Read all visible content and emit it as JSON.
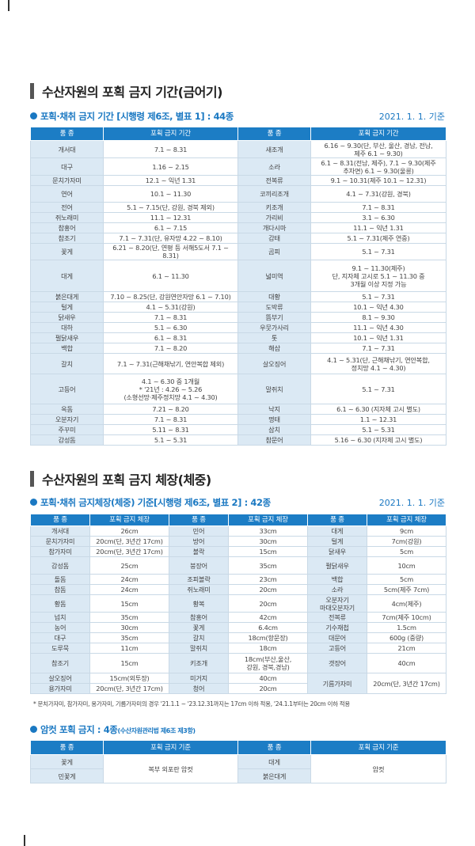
{
  "section1": {
    "title": "수산자원의 포획 금지 기간(금어기)",
    "subtitle": "포획·채취 금지 기간 [시행령 제6조, 별표 1] : 44종",
    "date": "2021. 1. 1. 기준",
    "headers": [
      "품 종",
      "포획 금지 기간",
      "품 종",
      "포획 금지 기간"
    ],
    "rows": [
      [
        "개서대",
        "7.1 ~ 8.31",
        "새조개",
        "6.16 ~ 9.30(단, 부산, 울산, 경남, 전남,\n제주 6.1 ~ 9.30)"
      ],
      [
        "대구",
        "1.16 ~ 2.15",
        "소라",
        "6.1 ~ 8.31(전남, 제주), 7.1 ~ 9.30(제주\n추자면) 6.1 ~ 9.30(울릉)"
      ],
      [
        "문치가자미",
        "12.1 ~ 익년 1.31",
        "전복류",
        "9.1 ~ 10.31(제주 10.1 ~ 12.31)"
      ],
      [
        "연어",
        "10.1 ~ 11.30",
        "코끼리조개",
        "4.1 ~ 7.31(강원, 경북)"
      ],
      [
        "전어",
        "5.1 ~ 7.15(단, 강원, 경북 제외)",
        "키조개",
        "7.1 ~ 8.31"
      ],
      [
        "쥐노래미",
        "11.1 ~ 12.31",
        "가리비",
        "3.1 ~ 6.30"
      ],
      [
        "참홍어",
        "6.1 ~ 7.15",
        "개다시마",
        "11.1 ~ 익년 1.31"
      ],
      [
        "참조기",
        "7.1 ~ 7.31(단, 유자망 4.22 ~ 8.10)",
        "감태",
        "5.1 ~ 7.31(제주 연중)"
      ],
      [
        "꽃게",
        "6.21 ~ 8.20(단, 연평 등 서해5도서 7.1 ~ 8.31)",
        "곰피",
        "5.1 ~ 7.31"
      ],
      [
        "대게",
        "6.1 ~ 11.30",
        "넓미역",
        "9.1 ~ 11.30(제주)\n단, 지자체 고시로 5.1 ~ 11.30 중\n3개월 이상 지정 가능"
      ],
      [
        "붉은대게",
        "7.10 ~ 8.25(단, 강원연안자망 6.1 ~ 7.10)",
        "대황",
        "5.1 ~ 7.31"
      ],
      [
        "털게",
        "4.1 ~ 5.31(강원)",
        "도박류",
        "10.1 ~ 익년 4.30"
      ],
      [
        "닭새우",
        "7.1 ~ 8.31",
        "뜸부기",
        "8.1 ~ 9.30"
      ],
      [
        "대하",
        "5.1 ~ 6.30",
        "우뭇가사리",
        "11.1 ~ 익년 4.30"
      ],
      [
        "펄닭새우",
        "6.1 ~ 8.31",
        "톳",
        "10.1 ~ 익년 1.31"
      ],
      [
        "백합",
        "7.1 ~ 8.20",
        "해삼",
        "7.1 ~ 7.31"
      ],
      [
        "갈치",
        "7.1 ~ 7.31(근해채낚기, 연안복합 제외)",
        "살오징어",
        "4.1 ~ 5.31(단, 근해채낚기, 연안복합,\n정치망 4.1 ~ 4.30)"
      ],
      [
        "고등어",
        "4.1 ~ 6.30 중 1개월\n* '21년 : 4.26 ~ 5.26\n(소형선망·제주정치망 4.1 ~ 4.30)",
        "말쥐치",
        "5.1 ~ 7.31"
      ],
      [
        "옥돔",
        "7.21 ~ 8.20",
        "낙지",
        "6.1 ~ 6.30 (지자체 고시 별도)"
      ],
      [
        "오분자기",
        "7.1 ~ 8.31",
        "명태",
        "1.1 ~ 12.31"
      ],
      [
        "주꾸미",
        "5.11 ~ 8.31",
        "삼치",
        "5.1 ~ 5.31"
      ],
      [
        "감성돔",
        "5.1 ~ 5.31",
        "참문어",
        "5.16 ~ 6.30 (지자체 고시 별도)"
      ]
    ]
  },
  "section2": {
    "title": "수산자원의 포획 금지 체장(체중)",
    "subtitle": "포획·채취 금지체장(체중) 기준[시행령 제6조, 별표 2] : 42종",
    "date": "2021. 1. 1. 기준",
    "headers": [
      "품 종",
      "포획 금지 체장",
      "품 종",
      "포획 금지 체장",
      "품 종",
      "포획 금지 체장"
    ],
    "rows_a": [
      [
        "개서대",
        "26cm",
        "민어",
        "33cm",
        "대게",
        "9cm"
      ],
      [
        "문치가자미",
        "20cm(단, 3년간 17cm)",
        "방어",
        "30cm",
        "털게",
        "7cm(강원)"
      ],
      [
        "참가자미",
        "20cm(단, 3년간 17cm)",
        "볼락",
        "15cm",
        "닭새우",
        "5cm"
      ],
      [
        "감성돔",
        "25cm",
        "붕장어",
        "35cm",
        "펄닭새우",
        "10cm"
      ],
      [
        "돌돔",
        "24cm",
        "조피볼락",
        "23cm",
        "백합",
        "5cm"
      ],
      [
        "참돔",
        "24cm",
        "쥐노래미",
        "20cm",
        "소라",
        "5cm(제주 7cm)"
      ],
      [
        "황돔",
        "15cm",
        "황복",
        "20cm",
        "오분자기\n마대오분자기",
        "4cm(제주)"
      ],
      [
        "넙치",
        "35cm",
        "참홍어",
        "42cm",
        "전복류",
        "7cm(제주 10cm)"
      ],
      [
        "농어",
        "30cm",
        "꽃게",
        "6.4cm",
        "기수재첩",
        "1.5cm"
      ],
      [
        "대구",
        "35cm",
        "갈치",
        "18cm(항문장)",
        "대문어",
        "600g (중량)"
      ],
      [
        "도루묵",
        "11cm",
        "말쥐치",
        "18cm",
        "고등어",
        "21cm"
      ],
      [
        "참조기",
        "15cm",
        "키조개",
        "18cm(부산,울산,\n강원, 경북,경남)",
        "갯장어",
        "40cm"
      ]
    ],
    "rows_b": [
      [
        "살오징어",
        "15cm(외투장)",
        "미거지",
        "40cm"
      ],
      [
        "용가자미",
        "20cm(단, 3년간 17cm)",
        "청어",
        "20cm"
      ]
    ],
    "rows_b_merged": [
      "기름가자미",
      "20cm(단, 3년간 17cm)"
    ],
    "note": "* 문치가자미, 참가자미, 용가자미, 기름가자미의 경우 '21.1.1 ~ '23.12.31까지는 17cm 이하 적용, '24.1.1부터는 20cm 이하 적용"
  },
  "section3": {
    "subtitle": "암컷 포획 금지 : 4종",
    "subtitle_small": "(수산자원관리법 제6조 제3항)",
    "headers": [
      "품 종",
      "포획 금지 기준",
      "품 종",
      "포획 금지 기준"
    ],
    "left_species": [
      "꽃게",
      "민꽃게"
    ],
    "left_rule": "복부 외포란 암컷",
    "right_species": [
      "대게",
      "붉은대게"
    ],
    "right_rule": "암컷"
  }
}
